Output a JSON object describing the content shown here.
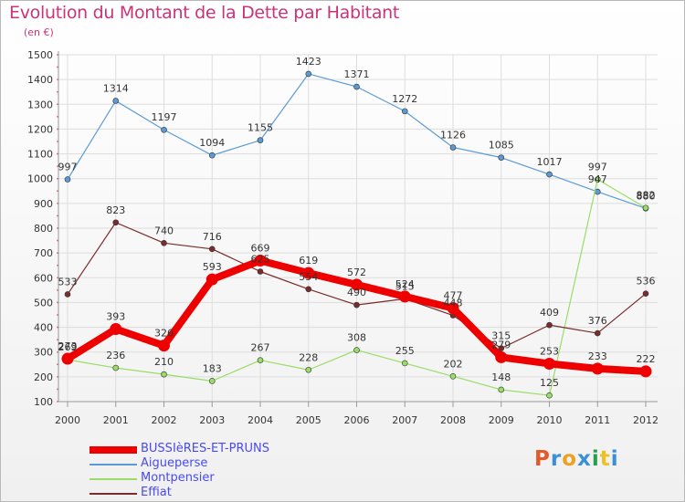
{
  "title": "Evolution du Montant de la Dette par Habitant",
  "subtitle": "(en €)",
  "logo": {
    "text": "Proxiti",
    "colors": [
      "#e05a2b",
      "#3a8fd6",
      "#f0a020",
      "#3a8fd6",
      "#2a9d4a",
      "#f0c020",
      "#3a8fd6"
    ]
  },
  "chart_data": {
    "type": "line",
    "title": "Evolution du Montant de la Dette par Habitant",
    "ylabel": "(en €)",
    "xlabel": "",
    "x": [
      2000,
      2001,
      2002,
      2003,
      2004,
      2005,
      2006,
      2007,
      2008,
      2009,
      2010,
      2011,
      2012
    ],
    "xticks": [
      "2000",
      "2001",
      "2002",
      "2003",
      "2004",
      "2005",
      "2006",
      "2007",
      "2008",
      "2009",
      "2010",
      "2011",
      "2012"
    ],
    "yticks": [
      "100",
      "200",
      "300",
      "400",
      "500",
      "600",
      "700",
      "800",
      "900",
      "1000",
      "1100",
      "1200",
      "1300",
      "1400",
      "1500"
    ],
    "ylim": [
      100,
      1500
    ],
    "grid": true,
    "legend_position": "bottom-left",
    "series": [
      {
        "name": "Aigueperse",
        "color": "#5b9bd5",
        "values": [
          997,
          1314,
          1197,
          1094,
          1155,
          1423,
          1371,
          1272,
          1126,
          1085,
          1017,
          947,
          880
        ]
      },
      {
        "name": "Montpensier",
        "color": "#99dd66",
        "values": [
          269,
          236,
          210,
          183,
          267,
          228,
          308,
          255,
          202,
          148,
          125,
          997,
          882
        ]
      },
      {
        "name": "Effiat",
        "color": "#7a2c2c",
        "values": [
          533,
          823,
          740,
          716,
          625,
          554,
          490,
          515,
          448,
          315,
          409,
          376,
          536
        ]
      },
      {
        "name": "BUSSIèRES-ET-PRUNS",
        "color": "#ee0000",
        "values": [
          273,
          393,
          326,
          593,
          669,
          619,
          572,
          524,
          477,
          279,
          253,
          233,
          222
        ]
      }
    ]
  }
}
